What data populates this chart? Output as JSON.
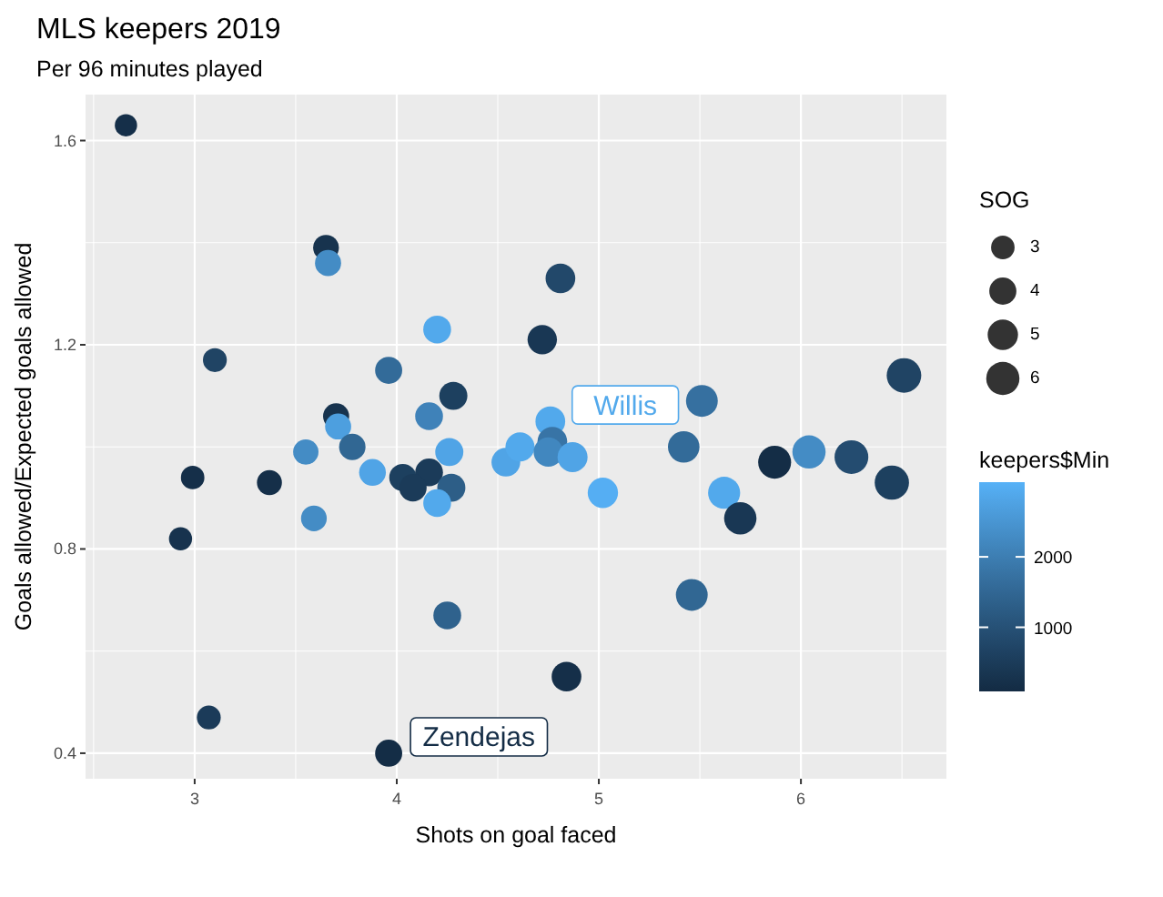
{
  "chart_data": {
    "type": "bubble",
    "title": "MLS keepers 2019",
    "subtitle": "Per 96 minutes played",
    "xlabel": "Shots on goal faced",
    "ylabel": "Goals allowed/Expected goals allowed",
    "legend_title": "SOG",
    "clabel": "keepers$Min",
    "x": [
      2.66,
      3.65,
      3.66,
      4.2,
      3.1,
      3.96,
      4.28,
      4.16,
      3.7,
      3.71,
      3.78,
      3.55,
      4.26,
      3.88,
      4.03,
      4.16,
      4.08,
      4.27,
      4.2,
      2.99,
      3.37,
      3.59,
      2.93,
      4.25,
      3.07,
      3.96,
      4.54,
      4.61,
      4.81,
      4.72,
      4.76,
      4.77,
      4.75,
      4.87,
      5.02,
      5.51,
      5.42,
      5.62,
      5.7,
      5.87,
      6.04,
      6.25,
      6.45,
      6.51,
      5.46,
      4.84
    ],
    "values": [
      1.63,
      1.39,
      1.36,
      1.23,
      1.17,
      1.15,
      1.1,
      1.06,
      1.06,
      1.04,
      1.0,
      0.99,
      0.99,
      0.95,
      0.94,
      0.95,
      0.92,
      0.92,
      0.89,
      0.94,
      0.93,
      0.86,
      0.82,
      0.67,
      0.47,
      0.4,
      0.97,
      1.0,
      1.33,
      1.21,
      1.05,
      1.01,
      0.99,
      0.98,
      0.91,
      1.09,
      1.0,
      0.91,
      0.86,
      0.97,
      0.99,
      0.98,
      0.93,
      1.14,
      0.71,
      0.55
    ],
    "sizes": [
      2.7,
      3.6,
      3.7,
      4.2,
      3.1,
      4.0,
      4.3,
      4.2,
      3.7,
      3.7,
      3.8,
      3.5,
      4.3,
      3.9,
      4.0,
      4.2,
      4.1,
      4.3,
      4.2,
      3.0,
      3.4,
      3.6,
      2.9,
      4.2,
      3.1,
      4.0,
      4.5,
      4.6,
      4.8,
      4.7,
      4.8,
      4.8,
      4.7,
      4.9,
      5.0,
      5.5,
      5.4,
      5.6,
      5.7,
      5.9,
      6.0,
      6.2,
      6.4,
      6.5,
      5.5,
      4.8
    ],
    "cvalues": [
      200,
      300,
      2300,
      2900,
      700,
      1600,
      600,
      2100,
      300,
      2700,
      1500,
      2300,
      2800,
      2800,
      600,
      500,
      500,
      1300,
      2900,
      200,
      200,
      2300,
      300,
      1400,
      500,
      150,
      2800,
      2900,
      800,
      400,
      2900,
      1800,
      2200,
      2800,
      3000,
      1700,
      1600,
      2900,
      400,
      150,
      2300,
      900,
      600,
      700,
      1500,
      200
    ],
    "size_legend": [
      3,
      4,
      5,
      6
    ],
    "clim": [
      90,
      3060
    ],
    "cticks": [
      1000,
      2000
    ],
    "xlim": [
      2.46,
      6.72
    ],
    "ylim": [
      0.35,
      1.69
    ],
    "xticks": [
      3,
      4,
      5,
      6
    ],
    "yticks": [
      0.4,
      0.8,
      1.2,
      1.6
    ],
    "grid": true,
    "annotations": [
      {
        "text": "Willis",
        "x": 4.76,
        "y": 1.05
      },
      {
        "text": "Zendejas",
        "x": 3.96,
        "y": 0.4
      }
    ]
  }
}
